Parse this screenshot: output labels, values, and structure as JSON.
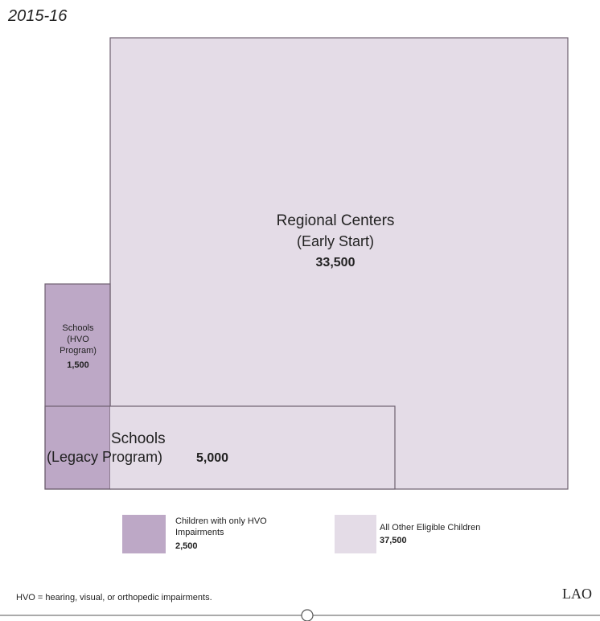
{
  "title": "2015-16",
  "regions": [
    {
      "lines": [
        "Regional Centers",
        "(Early Start)"
      ],
      "value": "33,500"
    },
    {
      "lines": [
        "Schools",
        "(HVO",
        "Program)"
      ],
      "value": "1,500"
    },
    {
      "lines": [
        "Schools",
        "(Legacy Program)"
      ],
      "value": "5,000"
    }
  ],
  "legend": [
    {
      "lines": [
        "Children with only HVO",
        "Impairments"
      ],
      "value": "2,500"
    },
    {
      "lines": [
        "All Other Eligible Children"
      ],
      "value": "37,500"
    }
  ],
  "footnote": "HVO = hearing, visual, or orthopedic impairments.",
  "logo": "LAO"
}
